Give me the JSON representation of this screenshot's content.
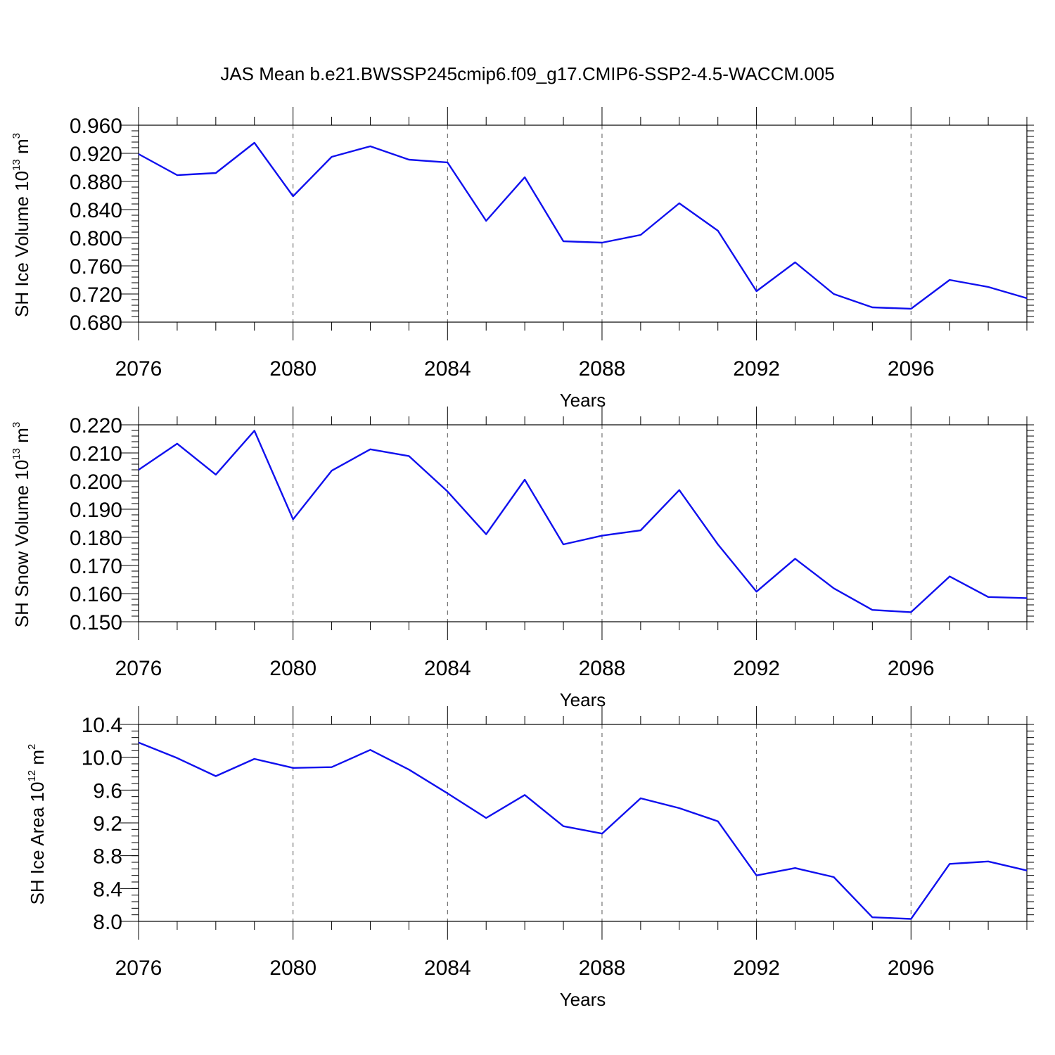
{
  "title": "JAS Mean b.e21.BWSSP245cmip6.f09_g17.CMIP6-SSP2-4.5-WACCM.005",
  "line_color": "#1010ee",
  "chart_data": [
    {
      "type": "line",
      "ylabel": "SH Ice Volume 10",
      "ylabel_exp": "13",
      "ylabel_unit": " m",
      "ylabel_unit_exp": "3",
      "xlabel": "Years",
      "xlim": [
        2076,
        2099
      ],
      "ylim": [
        0.68,
        0.96
      ],
      "yticks": [
        0.68,
        0.72,
        0.76,
        0.8,
        0.84,
        0.88,
        0.92,
        0.96
      ],
      "ytick_labels": [
        "0.680",
        "0.720",
        "0.760",
        "0.800",
        "0.840",
        "0.880",
        "0.920",
        "0.960"
      ],
      "yminor_step": 0.008,
      "xticks": [
        2076,
        2080,
        2084,
        2088,
        2092,
        2096
      ],
      "xtick_labels": [
        "2076",
        "2080",
        "2084",
        "2088",
        "2092",
        "2096"
      ],
      "grid": "vertical dashed at labeled years",
      "x": [
        2076,
        2077,
        2078,
        2079,
        2080,
        2081,
        2082,
        2083,
        2084,
        2085,
        2086,
        2087,
        2088,
        2089,
        2090,
        2091,
        2092,
        2093,
        2094,
        2095,
        2096,
        2097,
        2098,
        2099
      ],
      "y": [
        0.919,
        0.889,
        0.892,
        0.935,
        0.859,
        0.915,
        0.93,
        0.911,
        0.907,
        0.824,
        0.886,
        0.795,
        0.793,
        0.804,
        0.849,
        0.81,
        0.724,
        0.765,
        0.72,
        0.701,
        0.699,
        0.74,
        0.73,
        0.714
      ]
    },
    {
      "type": "line",
      "ylabel": "SH Snow Volume 10",
      "ylabel_exp": "13",
      "ylabel_unit": " m",
      "ylabel_unit_exp": "3",
      "xlabel": "Years",
      "xlim": [
        2076,
        2099
      ],
      "ylim": [
        0.15,
        0.22
      ],
      "yticks": [
        0.15,
        0.16,
        0.17,
        0.18,
        0.19,
        0.2,
        0.21,
        0.22
      ],
      "ytick_labels": [
        "0.150",
        "0.160",
        "0.170",
        "0.180",
        "0.190",
        "0.200",
        "0.210",
        "0.220"
      ],
      "yminor_step": 0.002,
      "xticks": [
        2076,
        2080,
        2084,
        2088,
        2092,
        2096
      ],
      "xtick_labels": [
        "2076",
        "2080",
        "2084",
        "2088",
        "2092",
        "2096"
      ],
      "grid": "vertical dashed at labeled years",
      "x": [
        2076,
        2077,
        2078,
        2079,
        2080,
        2081,
        2082,
        2083,
        2084,
        2085,
        2086,
        2087,
        2088,
        2089,
        2090,
        2091,
        2092,
        2093,
        2094,
        2095,
        2096,
        2097,
        2098,
        2099
      ],
      "y": [
        0.204,
        0.2133,
        0.2023,
        0.2179,
        0.1864,
        0.2037,
        0.2113,
        0.2089,
        0.1963,
        0.1811,
        0.2005,
        0.1775,
        0.1806,
        0.1825,
        0.1968,
        0.1775,
        0.1607,
        0.1724,
        0.1619,
        0.1542,
        0.1534,
        0.1661,
        0.1588,
        0.1584
      ]
    },
    {
      "type": "line",
      "ylabel": "SH Ice Area 10",
      "ylabel_exp": "12",
      "ylabel_unit": " m",
      "ylabel_unit_exp": "2",
      "xlabel": "Years",
      "xlim": [
        2076,
        2099
      ],
      "ylim": [
        8.0,
        10.4
      ],
      "yticks": [
        8.0,
        8.4,
        8.8,
        9.2,
        9.6,
        10.0,
        10.4
      ],
      "ytick_labels": [
        "8.0",
        "8.4",
        "8.8",
        "9.2",
        "9.6",
        "10.0",
        "10.4"
      ],
      "yminor_step": 0.08,
      "xticks": [
        2076,
        2080,
        2084,
        2088,
        2092,
        2096
      ],
      "xtick_labels": [
        "2076",
        "2080",
        "2084",
        "2088",
        "2092",
        "2096"
      ],
      "grid": "vertical dashed at labeled years",
      "x": [
        2076,
        2077,
        2078,
        2079,
        2080,
        2081,
        2082,
        2083,
        2084,
        2085,
        2086,
        2087,
        2088,
        2089,
        2090,
        2091,
        2092,
        2093,
        2094,
        2095,
        2096,
        2097,
        2098,
        2099
      ],
      "y": [
        10.18,
        9.99,
        9.77,
        9.98,
        9.87,
        9.88,
        10.09,
        9.85,
        9.56,
        9.26,
        9.54,
        9.16,
        9.07,
        9.5,
        9.38,
        9.22,
        8.56,
        8.65,
        8.54,
        8.05,
        8.03,
        8.7,
        8.73,
        8.62
      ]
    }
  ]
}
